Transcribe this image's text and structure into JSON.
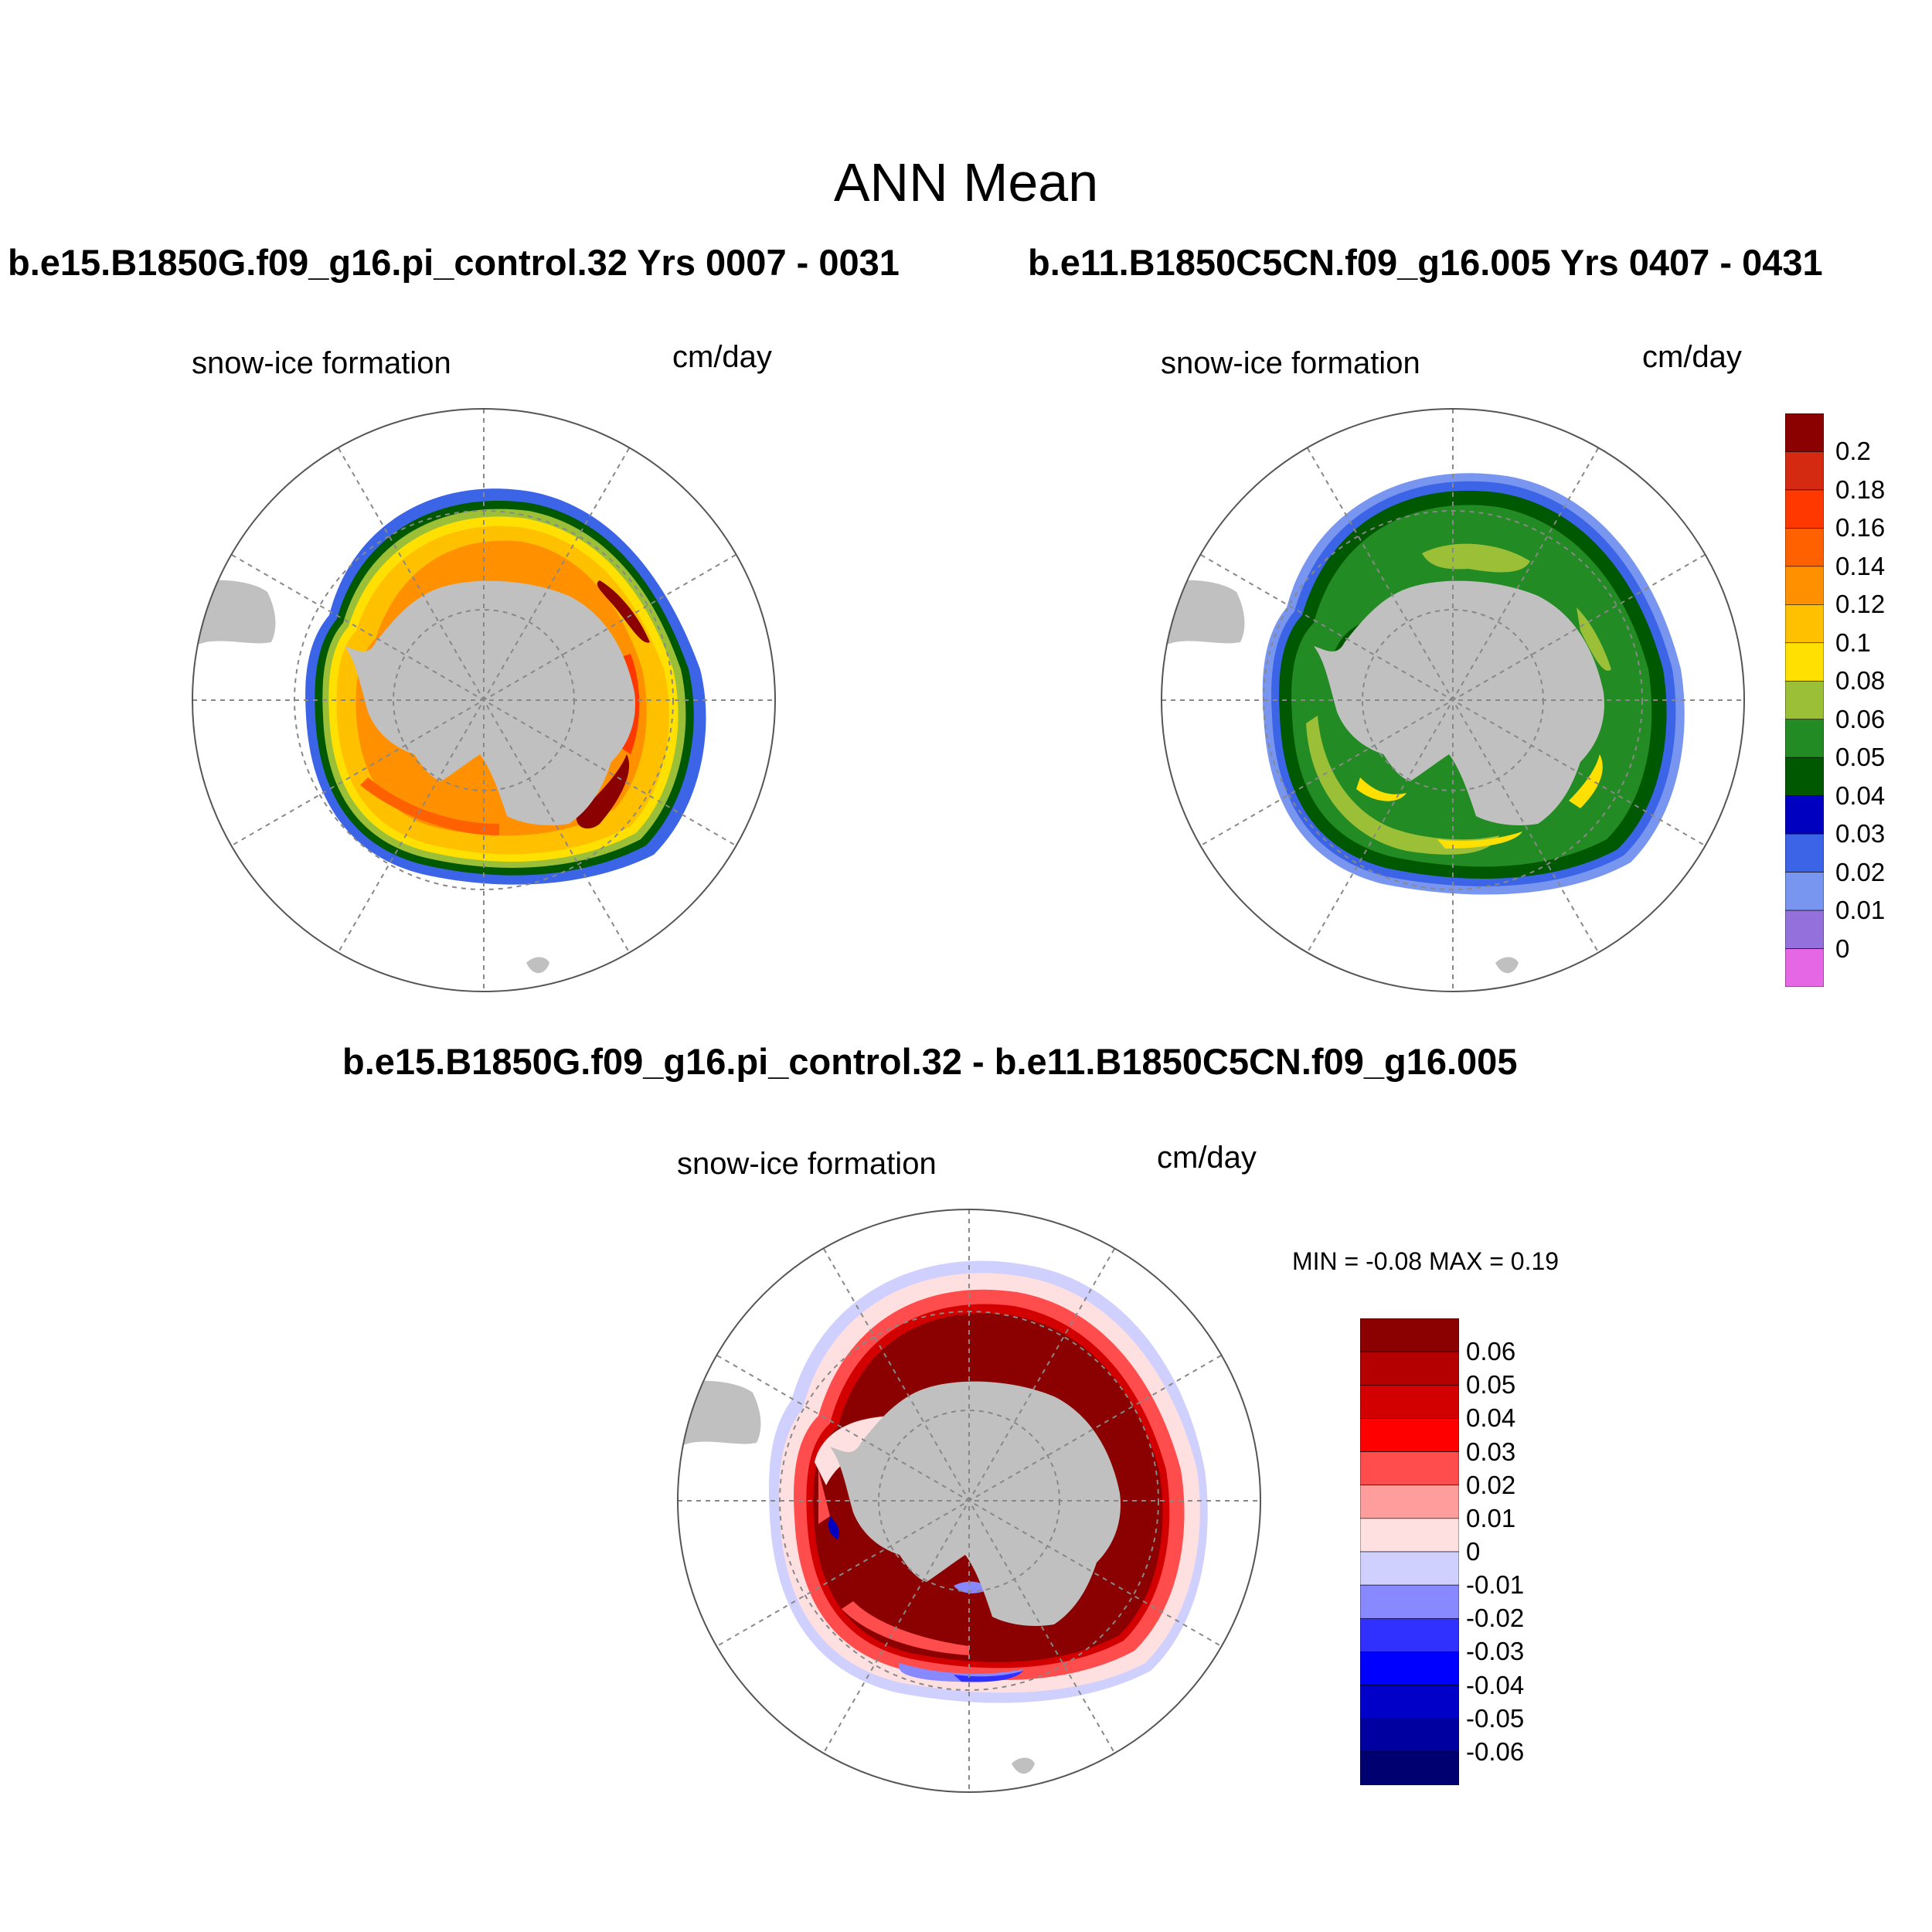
{
  "page": {
    "title": "ANN Mean",
    "diff_title": "b.e15.B1850G.f09_g16.pi_control.32 - b.e11.B1850C5CN.f09_g16.005"
  },
  "panels": [
    {
      "case_title": "b.e15.B1850G.f09_g16.pi_control.32  Yrs 0007 - 0031",
      "variable": "snow-ice formation",
      "units": "cm/day"
    },
    {
      "case_title": "b.e11.B1850C5CN.f09_g16.005  Yrs 0407 - 0431",
      "variable": "snow-ice formation",
      "units": "cm/day"
    },
    {
      "variable": "snow-ice formation",
      "units": "cm/day",
      "minmax": "MIN =  -0.08 MAX =   0.19"
    }
  ],
  "colorbar_abs": {
    "labels": [
      "0.2",
      "0.18",
      "0.16",
      "0.14",
      "0.12",
      "0.1",
      "0.08",
      "0.06",
      "0.05",
      "0.04",
      "0.03",
      "0.02",
      "0.01",
      "0"
    ],
    "colors": [
      "#8b0000",
      "#d42a12",
      "#ff3800",
      "#ff6000",
      "#ff9000",
      "#ffc000",
      "#ffe000",
      "#9bc038",
      "#238b23",
      "#005800",
      "#0000c0",
      "#3c64e6",
      "#7896f0",
      "#9370db",
      "#e667e6"
    ]
  },
  "colorbar_diff": {
    "labels": [
      "0.06",
      "0.05",
      "0.04",
      "0.03",
      "0.02",
      "0.01",
      "0",
      "-0.01",
      "-0.02",
      "-0.03",
      "-0.04",
      "-0.05",
      "-0.06"
    ],
    "colors": [
      "#8b0000",
      "#b40000",
      "#d20000",
      "#ff0000",
      "#ff4c4c",
      "#ff9c9c",
      "#ffe0e0",
      "#d0d0ff",
      "#8888ff",
      "#3030ff",
      "#0000ff",
      "#0000c8",
      "#0000a0",
      "#000070"
    ]
  }
}
